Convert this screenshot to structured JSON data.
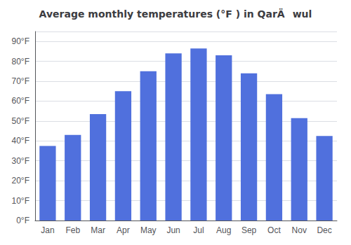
{
  "chart_data": {
    "type": "bar",
    "title": "Average monthly temperatures (°F ) in QarÄwul",
    "categories": [
      "Jan",
      "Feb",
      "Mar",
      "Apr",
      "May",
      "Jun",
      "Jul",
      "Aug",
      "Sep",
      "Oct",
      "Nov",
      "Dec"
    ],
    "values": [
      37.5,
      43,
      53.5,
      65,
      75,
      84,
      86.5,
      83,
      74,
      63.5,
      51.5,
      42.5
    ],
    "ylim": [
      0,
      95
    ],
    "yticks": [
      {
        "value": 0,
        "label": "0°F"
      },
      {
        "value": 10,
        "label": "10°F"
      },
      {
        "value": 20,
        "label": "20°F"
      },
      {
        "value": 30,
        "label": "30°F"
      },
      {
        "value": 40,
        "label": "40°F"
      },
      {
        "value": 50,
        "label": "50°F"
      },
      {
        "value": 60,
        "label": "60°F"
      },
      {
        "value": 70,
        "label": "70°F"
      },
      {
        "value": 80,
        "label": "80°F"
      },
      {
        "value": 90,
        "label": "90°F"
      }
    ],
    "grid": true
  }
}
